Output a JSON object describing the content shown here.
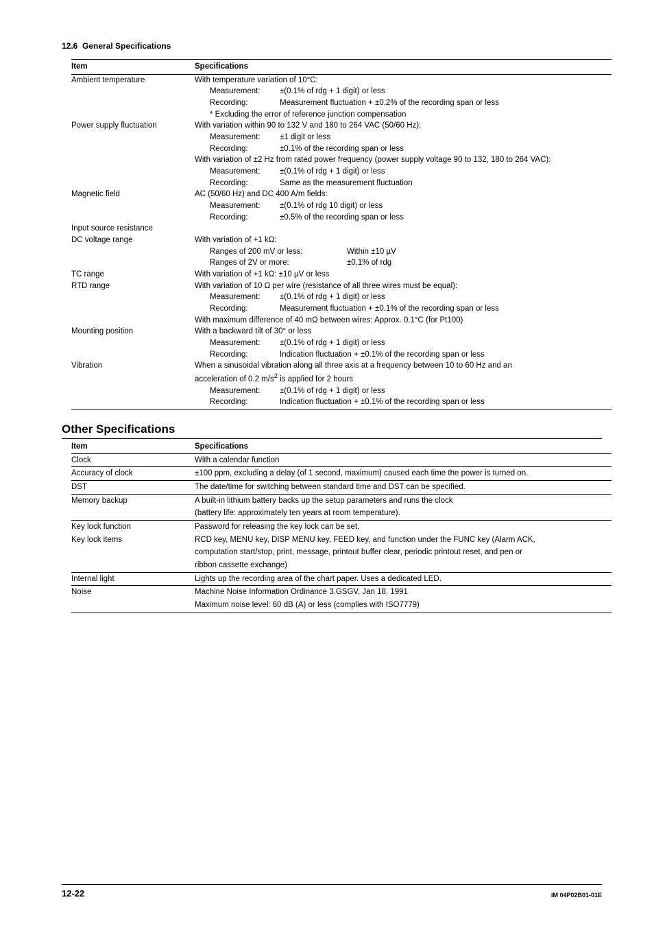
{
  "header": {
    "section_number": "12.6",
    "section_title": "General Specifications"
  },
  "table1": {
    "head_item": "Item",
    "head_spec": "Specifications",
    "rows": [
      {
        "item": "Ambient temperature",
        "spec": "With temperature variation of 10°C:"
      },
      {
        "ind": 1,
        "labelType": "m",
        "label": "Measurement:",
        "val": "±(0.1% of rdg + 1 digit) or less"
      },
      {
        "ind": 1,
        "labelType": "m",
        "label": "Recording:",
        "val": "Measurement fluctuation + ±0.2% of the recording span or less"
      },
      {
        "ind": 1,
        "plain": "* Excluding the error of reference junction compensation"
      },
      {
        "item": "Power supply fluctuation",
        "spec": "With variation within 90 to 132 V and 180 to 264 VAC (50/60 Hz):"
      },
      {
        "ind": 1,
        "labelType": "m",
        "label": "Measurement:",
        "val": "±1 digit or less"
      },
      {
        "ind": 1,
        "labelType": "m",
        "label": "Recording:",
        "val": "±0.1% of the recording span or less"
      },
      {
        "plain": "With variation of ±2 Hz from rated power frequency (power supply voltage 90 to 132, 180 to 264 VAC):"
      },
      {
        "ind": 1,
        "labelType": "m",
        "label": "Measurement:",
        "val": "±(0.1% of rdg + 1 digit) or less"
      },
      {
        "ind": 1,
        "labelType": "m",
        "label": "Recording:",
        "val": "Same as the measurement fluctuation"
      },
      {
        "item": "Magnetic field",
        "spec": "AC (50/60 Hz) and DC 400 A/m fields:"
      },
      {
        "ind": 1,
        "labelType": "m",
        "label": "Measurement:",
        "val": "±(0.1% of rdg 10 digit) or less"
      },
      {
        "ind": 1,
        "labelType": "m",
        "label": "Recording:",
        "val": "±0.5% of the recording span or less"
      },
      {
        "item": "Input source resistance",
        "spec": ""
      },
      {
        "itemIndent": 1,
        "item": "DC voltage range",
        "spec": "With variation of +1 kΩ:"
      },
      {
        "ind": 1,
        "labelType": "w",
        "label": "Ranges of 200 mV or less:",
        "val": "Within ±10 µV"
      },
      {
        "ind": 1,
        "labelType": "w",
        "label": "Ranges of 2V or more:",
        "val": "±0.1% of rdg"
      },
      {
        "itemIndent": 1,
        "item": "TC range",
        "spec": "With variation of +1 kΩ: ±10 µV or less"
      },
      {
        "itemIndent": 1,
        "item": "RTD range",
        "spec": "With variation of 10 Ω per wire (resistance of all three wires must be equal):"
      },
      {
        "ind": 1,
        "labelType": "m",
        "label": "Measurement:",
        "val": "±(0.1% of rdg + 1 digit) or less"
      },
      {
        "ind": 1,
        "labelType": "m",
        "label": "Recording:",
        "val": "Measurement fluctuation + ±0.1% of the recording span or less"
      },
      {
        "plain": "With maximum difference of 40 mΩ between wires: Approx. 0.1°C (for Pt100)"
      },
      {
        "item": "Mounting position",
        "spec": "With a backward tilt of 30° or less"
      },
      {
        "ind": 1,
        "labelType": "m",
        "label": "Measurement:",
        "val": "±(0.1% of rdg + 1 digit) or less"
      },
      {
        "ind": 1,
        "labelType": "m",
        "label": "Recording:",
        "val": "Indication fluctuation + ±0.1% of the recording span or less"
      },
      {
        "item": "Vibration",
        "spec": "When a sinusoidal vibration along all three axis at a frequency between 10 to 60 Hz and an"
      },
      {
        "specHtml": "acceleration of 0.2 m/s<sup>2</sup> is applied for 2 hours"
      },
      {
        "ind": 1,
        "labelType": "m",
        "label": "Measurement:",
        "val": "±(0.1% of rdg + 1 digit) or less"
      },
      {
        "last": true,
        "ind": 1,
        "labelType": "m",
        "label": "Recording:",
        "val": "Indication fluctuation + ±0.1% of the recording span or less"
      }
    ]
  },
  "other_title": "Other Specifications",
  "table2": {
    "head_item": "Item",
    "head_spec": "Specifications",
    "rows": [
      {
        "ruled": true,
        "item": "Clock",
        "spec": "With a calendar function"
      },
      {
        "ruled": true,
        "item": "Accuracy of clock",
        "spec": "±100 ppm, excluding a delay (of 1 second, maximum) caused each time the power is turned on."
      },
      {
        "ruled": true,
        "item": "DST",
        "spec": "The date/time for switching between standard time and DST can be specified."
      },
      {
        "ruled": true,
        "item": "Memory backup",
        "spec": "A built-in lithium battery backs up the setup parameters and runs the clock"
      },
      {
        "item": "",
        "spec": "(battery life: approximately ten years at room temperature)."
      },
      {
        "ruled": true,
        "item": "Key lock function",
        "spec": "Password for releasing the key lock can be set."
      },
      {
        "itemIndent": 1,
        "item": "Key lock items",
        "spec": "RCD key, MENU key, DISP MENU key, FEED key, and function under the FUNC key (Alarm ACK,"
      },
      {
        "item": "",
        "spec": "computation start/stop, print, message, printout buffer clear, periodic printout reset, and pen or"
      },
      {
        "item": "",
        "spec": "ribbon cassette exchange)"
      },
      {
        "ruled": true,
        "item": "Internal light",
        "spec": "Lights up the recording area of the chart paper. Uses a dedicated LED."
      },
      {
        "ruled": true,
        "item": "Noise",
        "spec": "Machine Noise Information Ordinance 3.GSGV, Jan 18, 1991"
      },
      {
        "end": true,
        "item": "",
        "spec": "Maximum noise level: 60 dB (A) or less (complies with ISO7779)"
      }
    ]
  },
  "footer": {
    "page": "12-22",
    "doc": "IM 04P02B01-01E"
  }
}
